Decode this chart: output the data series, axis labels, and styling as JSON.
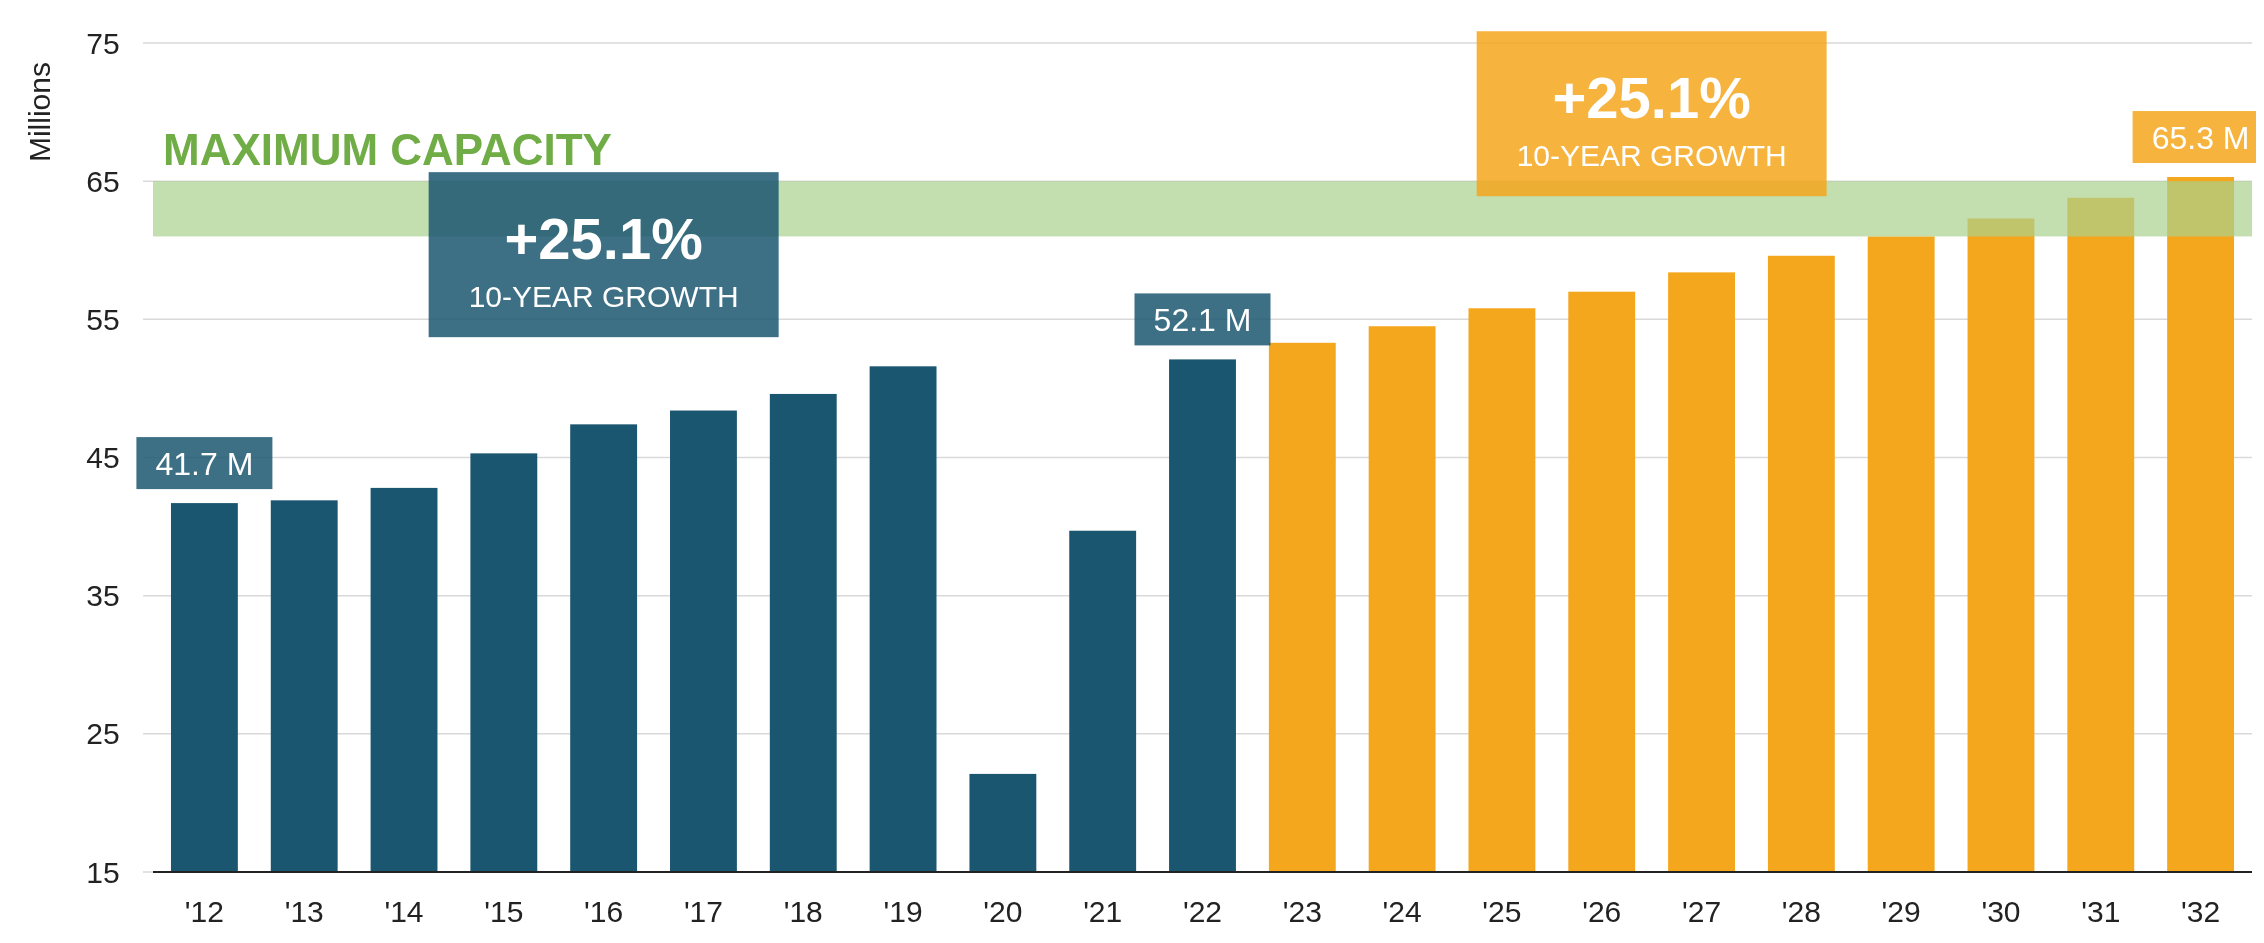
{
  "chart_data": {
    "type": "bar",
    "ylabel": "Millions",
    "categories": [
      "'12",
      "'13",
      "'14",
      "'15",
      "'16",
      "'17",
      "'18",
      "'19",
      "'20",
      "'21",
      "'22",
      "'23",
      "'24",
      "'25",
      "'26",
      "'27",
      "'28",
      "'29",
      "'30",
      "'31",
      "'32"
    ],
    "values": [
      41.7,
      41.9,
      42.8,
      45.3,
      47.4,
      48.4,
      49.6,
      51.6,
      22.1,
      39.7,
      52.1,
      53.3,
      54.5,
      55.8,
      57.0,
      58.4,
      59.6,
      61.0,
      62.3,
      63.8,
      65.3
    ],
    "colors": [
      "#1b5670",
      "#1b5670",
      "#1b5670",
      "#1b5670",
      "#1b5670",
      "#1b5670",
      "#1b5670",
      "#1b5670",
      "#1b5670",
      "#1b5670",
      "#1b5670",
      "#f4a71d",
      "#f4a71d",
      "#f4a71d",
      "#f4a71d",
      "#f4a71d",
      "#f4a71d",
      "#f4a71d",
      "#f4a71d",
      "#f4a71d",
      "#f4a71d"
    ],
    "value_labels": [
      "41.7 M",
      null,
      null,
      null,
      null,
      null,
      null,
      null,
      null,
      null,
      "52.1 M",
      null,
      null,
      null,
      null,
      null,
      null,
      null,
      null,
      null,
      "65.3 M"
    ],
    "ylim": [
      15,
      75
    ],
    "yticks": [
      15,
      25,
      35,
      45,
      55,
      65,
      75
    ],
    "grid": "y",
    "bands": [
      {
        "axis": "y",
        "from": 61,
        "to": 65,
        "label": "MAXIMUM CAPACITY",
        "color": "#a9d18e"
      }
    ],
    "annotations": [
      "+25.1%",
      "10-YEAR GROWTH",
      "+25.1%",
      "10-YEAR GROWTH"
    ]
  }
}
